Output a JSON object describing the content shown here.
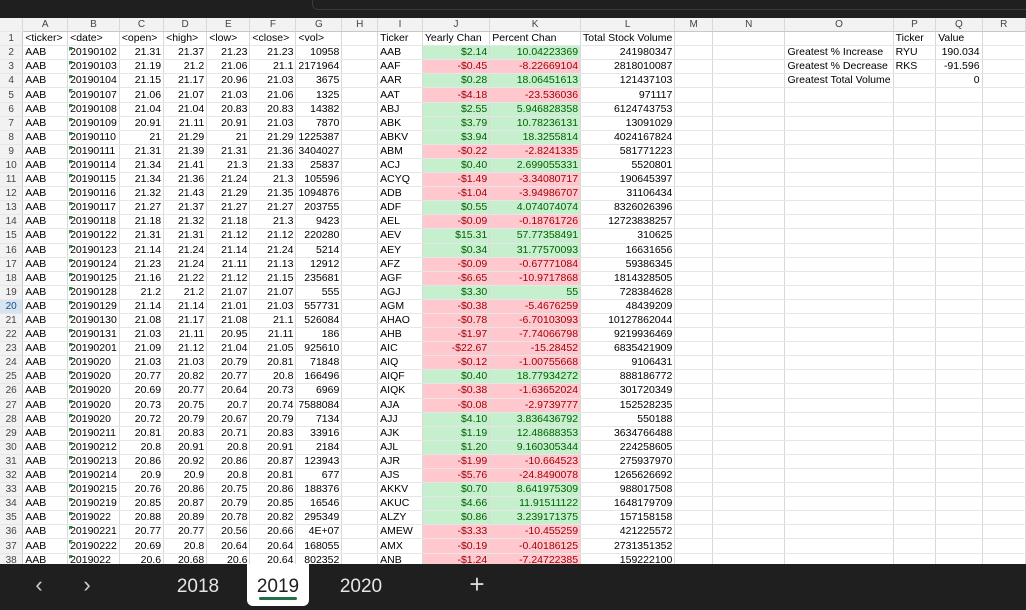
{
  "columns": [
    "A",
    "B",
    "C",
    "D",
    "E",
    "F",
    "G",
    "H",
    "I",
    "J",
    "K",
    "L",
    "M",
    "N",
    "O",
    "P",
    "Q",
    "R"
  ],
  "sheet_tabs": [
    "2018",
    "2019",
    "2020"
  ],
  "active_tab": "2019",
  "add_sheet_glyph": "+",
  "nav_prev_glyph": "‹",
  "nav_next_glyph": "›",
  "colors": {
    "positive_fill": "#c6efce",
    "negative_fill": "#ffc7ce",
    "active_tab_accent": "#1e7145"
  },
  "headers": {
    "raw": [
      "<ticker>",
      "<date>",
      "<open>",
      "<high>",
      "<low>",
      "<close>",
      "<vol>"
    ],
    "summary": [
      "Ticker",
      "Yearly Chan",
      "Percent Chan",
      "Total Stock Volume"
    ],
    "stats": [
      "",
      "Ticker",
      "Value"
    ]
  },
  "raw_rows": [
    [
      "AAB",
      "20190102",
      "21.31",
      "21.37",
      "21.23",
      "21.23",
      "10958"
    ],
    [
      "AAB",
      "20190103",
      "21.19",
      "21.2",
      "21.06",
      "21.1",
      "2171964"
    ],
    [
      "AAB",
      "20190104",
      "21.15",
      "21.17",
      "20.96",
      "21.03",
      "3675"
    ],
    [
      "AAB",
      "20190107",
      "21.06",
      "21.07",
      "21.03",
      "21.06",
      "1325"
    ],
    [
      "AAB",
      "20190108",
      "21.04",
      "21.04",
      "20.83",
      "20.83",
      "14382"
    ],
    [
      "AAB",
      "20190109",
      "20.91",
      "21.11",
      "20.91",
      "21.03",
      "7870"
    ],
    [
      "AAB",
      "20190110",
      "21",
      "21.29",
      "21",
      "21.29",
      "1225387"
    ],
    [
      "AAB",
      "20190111",
      "21.31",
      "21.39",
      "21.31",
      "21.36",
      "3404027"
    ],
    [
      "AAB",
      "20190114",
      "21.34",
      "21.41",
      "21.3",
      "21.33",
      "25837"
    ],
    [
      "AAB",
      "20190115",
      "21.34",
      "21.36",
      "21.24",
      "21.3",
      "105596"
    ],
    [
      "AAB",
      "20190116",
      "21.32",
      "21.43",
      "21.29",
      "21.35",
      "1094876"
    ],
    [
      "AAB",
      "20190117",
      "21.27",
      "21.37",
      "21.27",
      "21.27",
      "203755"
    ],
    [
      "AAB",
      "20190118",
      "21.18",
      "21.32",
      "21.18",
      "21.3",
      "9423"
    ],
    [
      "AAB",
      "20190122",
      "21.31",
      "21.31",
      "21.12",
      "21.12",
      "220280"
    ],
    [
      "AAB",
      "20190123",
      "21.14",
      "21.24",
      "21.14",
      "21.24",
      "5214"
    ],
    [
      "AAB",
      "20190124",
      "21.23",
      "21.24",
      "21.11",
      "21.13",
      "12912"
    ],
    [
      "AAB",
      "20190125",
      "21.16",
      "21.22",
      "21.12",
      "21.15",
      "235681"
    ],
    [
      "AAB",
      "20190128",
      "21.2",
      "21.2",
      "21.07",
      "21.07",
      "555"
    ],
    [
      "AAB",
      "20190129",
      "21.14",
      "21.14",
      "21.01",
      "21.03",
      "557731"
    ],
    [
      "AAB",
      "20190130",
      "21.08",
      "21.17",
      "21.08",
      "21.1",
      "526084"
    ],
    [
      "AAB",
      "20190131",
      "21.03",
      "21.11",
      "20.95",
      "21.11",
      "186"
    ],
    [
      "AAB",
      "20190201",
      "21.09",
      "21.12",
      "21.04",
      "21.05",
      "925610"
    ],
    [
      "AAB",
      "2019020",
      "21.03",
      "21.03",
      "20.79",
      "20.81",
      "71848"
    ],
    [
      "AAB",
      "2019020",
      "20.77",
      "20.82",
      "20.77",
      "20.8",
      "166496"
    ],
    [
      "AAB",
      "2019020",
      "20.69",
      "20.77",
      "20.64",
      "20.73",
      "6969"
    ],
    [
      "AAB",
      "2019020",
      "20.73",
      "20.75",
      "20.7",
      "20.74",
      "7588084"
    ],
    [
      "AAB",
      "2019020",
      "20.72",
      "20.79",
      "20.67",
      "20.79",
      "7134"
    ],
    [
      "AAB",
      "20190211",
      "20.81",
      "20.83",
      "20.71",
      "20.83",
      "33916"
    ],
    [
      "AAB",
      "20190212",
      "20.8",
      "20.91",
      "20.8",
      "20.91",
      "2184"
    ],
    [
      "AAB",
      "20190213",
      "20.86",
      "20.92",
      "20.86",
      "20.87",
      "123943"
    ],
    [
      "AAB",
      "20190214",
      "20.9",
      "20.9",
      "20.8",
      "20.81",
      "677"
    ],
    [
      "AAB",
      "20190215",
      "20.76",
      "20.86",
      "20.75",
      "20.86",
      "188376"
    ],
    [
      "AAB",
      "20190219",
      "20.85",
      "20.87",
      "20.79",
      "20.85",
      "16546"
    ],
    [
      "AAB",
      "2019022",
      "20.88",
      "20.89",
      "20.78",
      "20.82",
      "295349"
    ],
    [
      "AAB",
      "20190221",
      "20.77",
      "20.77",
      "20.56",
      "20.66",
      "4E+07"
    ],
    [
      "AAB",
      "20190222",
      "20.69",
      "20.8",
      "20.64",
      "20.64",
      "168055"
    ],
    [
      "AAB",
      "2019022",
      "20.6",
      "20.68",
      "20.6",
      "20.64",
      "802352"
    ]
  ],
  "summary_rows": [
    [
      "AAB",
      "$2.14",
      "10.04223369",
      "241980347"
    ],
    [
      "AAF",
      "-$0.45",
      "-8.22669104",
      "2818010087"
    ],
    [
      "AAR",
      "$0.28",
      "18.06451613",
      "121437103"
    ],
    [
      "AAT",
      "-$4.18",
      "-23.536036",
      "971117"
    ],
    [
      "ABJ",
      "$2.55",
      "5.946828358",
      "6124743753"
    ],
    [
      "ABK",
      "$3.79",
      "10.78236131",
      "13091029"
    ],
    [
      "ABKV",
      "$3.94",
      "18.3255814",
      "4024167824"
    ],
    [
      "ABM",
      "-$0.22",
      "-2.8241335",
      "581771223"
    ],
    [
      "ACJ",
      "$0.40",
      "2.699055331",
      "5520801"
    ],
    [
      "ACYQ",
      "-$1.49",
      "-3.34080717",
      "190645397"
    ],
    [
      "ADB",
      "-$1.04",
      "-3.94986707",
      "31106434"
    ],
    [
      "ADF",
      "$0.55",
      "4.074074074",
      "8326026396"
    ],
    [
      "AEL",
      "-$0.09",
      "-0.18761726",
      "12723838257"
    ],
    [
      "AEV",
      "$15.31",
      "57.77358491",
      "310625"
    ],
    [
      "AEY",
      "$0.34",
      "31.77570093",
      "16631656"
    ],
    [
      "AFZ",
      "-$0.09",
      "-0.67771084",
      "59386345"
    ],
    [
      "AGF",
      "-$6.65",
      "-10.9717868",
      "1814328505"
    ],
    [
      "AGJ",
      "$3.30",
      "55",
      "728384628"
    ],
    [
      "AGM",
      "-$0.38",
      "-5.4676259",
      "48439209"
    ],
    [
      "AHAO",
      "-$0.78",
      "-6.70103093",
      "10127862044"
    ],
    [
      "AHB",
      "-$1.97",
      "-7.74066798",
      "9219936469"
    ],
    [
      "AIC",
      "-$22.67",
      "-15.28452",
      "6835421909"
    ],
    [
      "AIQ",
      "-$0.12",
      "-1.00755668",
      "9106431"
    ],
    [
      "AIQF",
      "$0.40",
      "18.77934272",
      "888186772"
    ],
    [
      "AIQK",
      "-$0.38",
      "-1.63652024",
      "301720349"
    ],
    [
      "AJA",
      "-$0.08",
      "-2.9739777",
      "152528235"
    ],
    [
      "AJJ",
      "$4.10",
      "3.836436792",
      "550188"
    ],
    [
      "AJK",
      "$1.19",
      "12.48688353",
      "3634766488"
    ],
    [
      "AJL",
      "$1.20",
      "9.160305344",
      "224258605"
    ],
    [
      "AJR",
      "-$1.99",
      "-10.664523",
      "275937970"
    ],
    [
      "AJS",
      "-$5.76",
      "-24.8490078",
      "1265626692"
    ],
    [
      "AKKV",
      "$0.70",
      "8.641975309",
      "988017508"
    ],
    [
      "AKUC",
      "$4.66",
      "11.91511122",
      "1648179709"
    ],
    [
      "ALZY",
      "$0.86",
      "3.239171375",
      "157158158"
    ],
    [
      "AMEW",
      "-$3.33",
      "-10.455259",
      "421225572"
    ],
    [
      "AMX",
      "-$0.19",
      "-0.40186125",
      "2731351352"
    ],
    [
      "ANB",
      "-$1.24",
      "-7.24722385",
      "159222100"
    ]
  ],
  "stats_rows": [
    [
      "Greatest % Increase",
      "RYU",
      "190.034"
    ],
    [
      "Greatest % Decrease",
      "RKS",
      "-91.596"
    ],
    [
      "Greatest Total Volume",
      "",
      "0"
    ]
  ]
}
